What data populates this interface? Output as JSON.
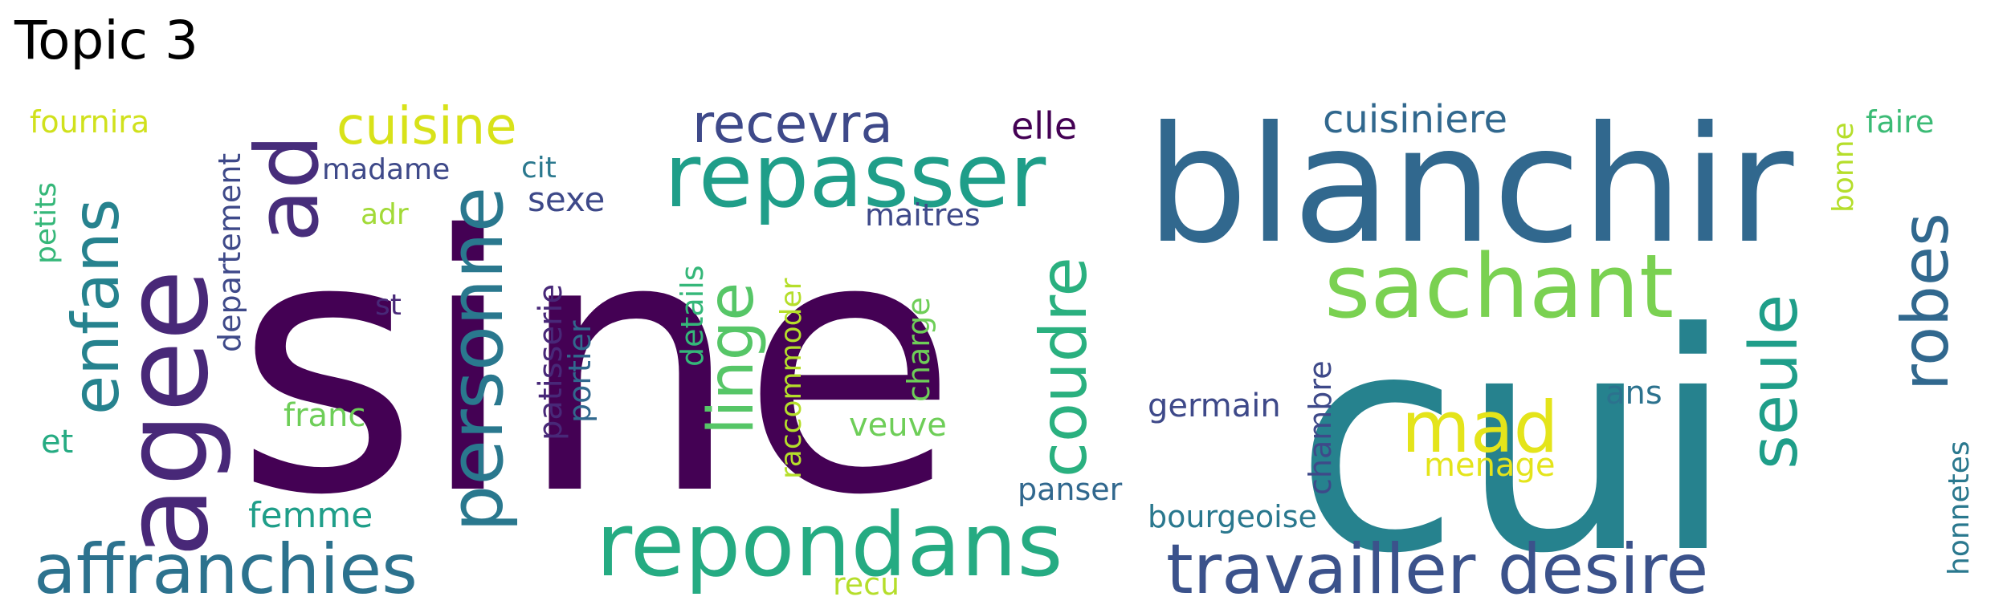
{
  "title": "Topic 3",
  "palette": {
    "dark_purple": "#440154",
    "purple": "#482878",
    "indigo": "#3e4989",
    "slate_blue": "#31688e",
    "teal_blue": "#26828e",
    "teal": "#1f9e89",
    "green_teal": "#35b779",
    "green": "#6ece58",
    "lime": "#b5de2b",
    "yellow": "#e4e41a"
  },
  "words": {
    "sine": "sine",
    "cui": "cui",
    "blanchir": "blanchir",
    "agee": "agee",
    "repasser": "repasser",
    "repondans": "repondans",
    "affranchies": "affranchies",
    "travailler_desire": "travailler desire",
    "sachant": "sachant",
    "personne": "personne",
    "enfans": "enfans",
    "ad": "ad",
    "linge": "linge",
    "coudre": "coudre",
    "robes": "robes",
    "seule": "seule",
    "mad": "mad",
    "cuisine": "cuisine",
    "recevra": "recevra",
    "cuisiniere": "cuisiniere",
    "elle": "elle",
    "faire": "faire",
    "fournira": "fournira",
    "madame": "madame",
    "cit": "cit",
    "sexe": "sexe",
    "maitres": "maitres",
    "adr": "adr",
    "st": "st",
    "petits": "petits",
    "departement": "departement",
    "bonne": "bonne",
    "details": "details",
    "patisserie": "patisserie",
    "portier": "portier",
    "raccommoder": "raccommoder",
    "charge": "charge",
    "franc": "franc",
    "veuve": "veuve",
    "germain": "germain",
    "ans": "ans",
    "et": "et",
    "chambre": "chambre",
    "menage": "menage",
    "panser": "panser",
    "femme": "femme",
    "bourgeoise": "bourgeoise",
    "honnetes": "honnetes",
    "recu": "recu"
  }
}
